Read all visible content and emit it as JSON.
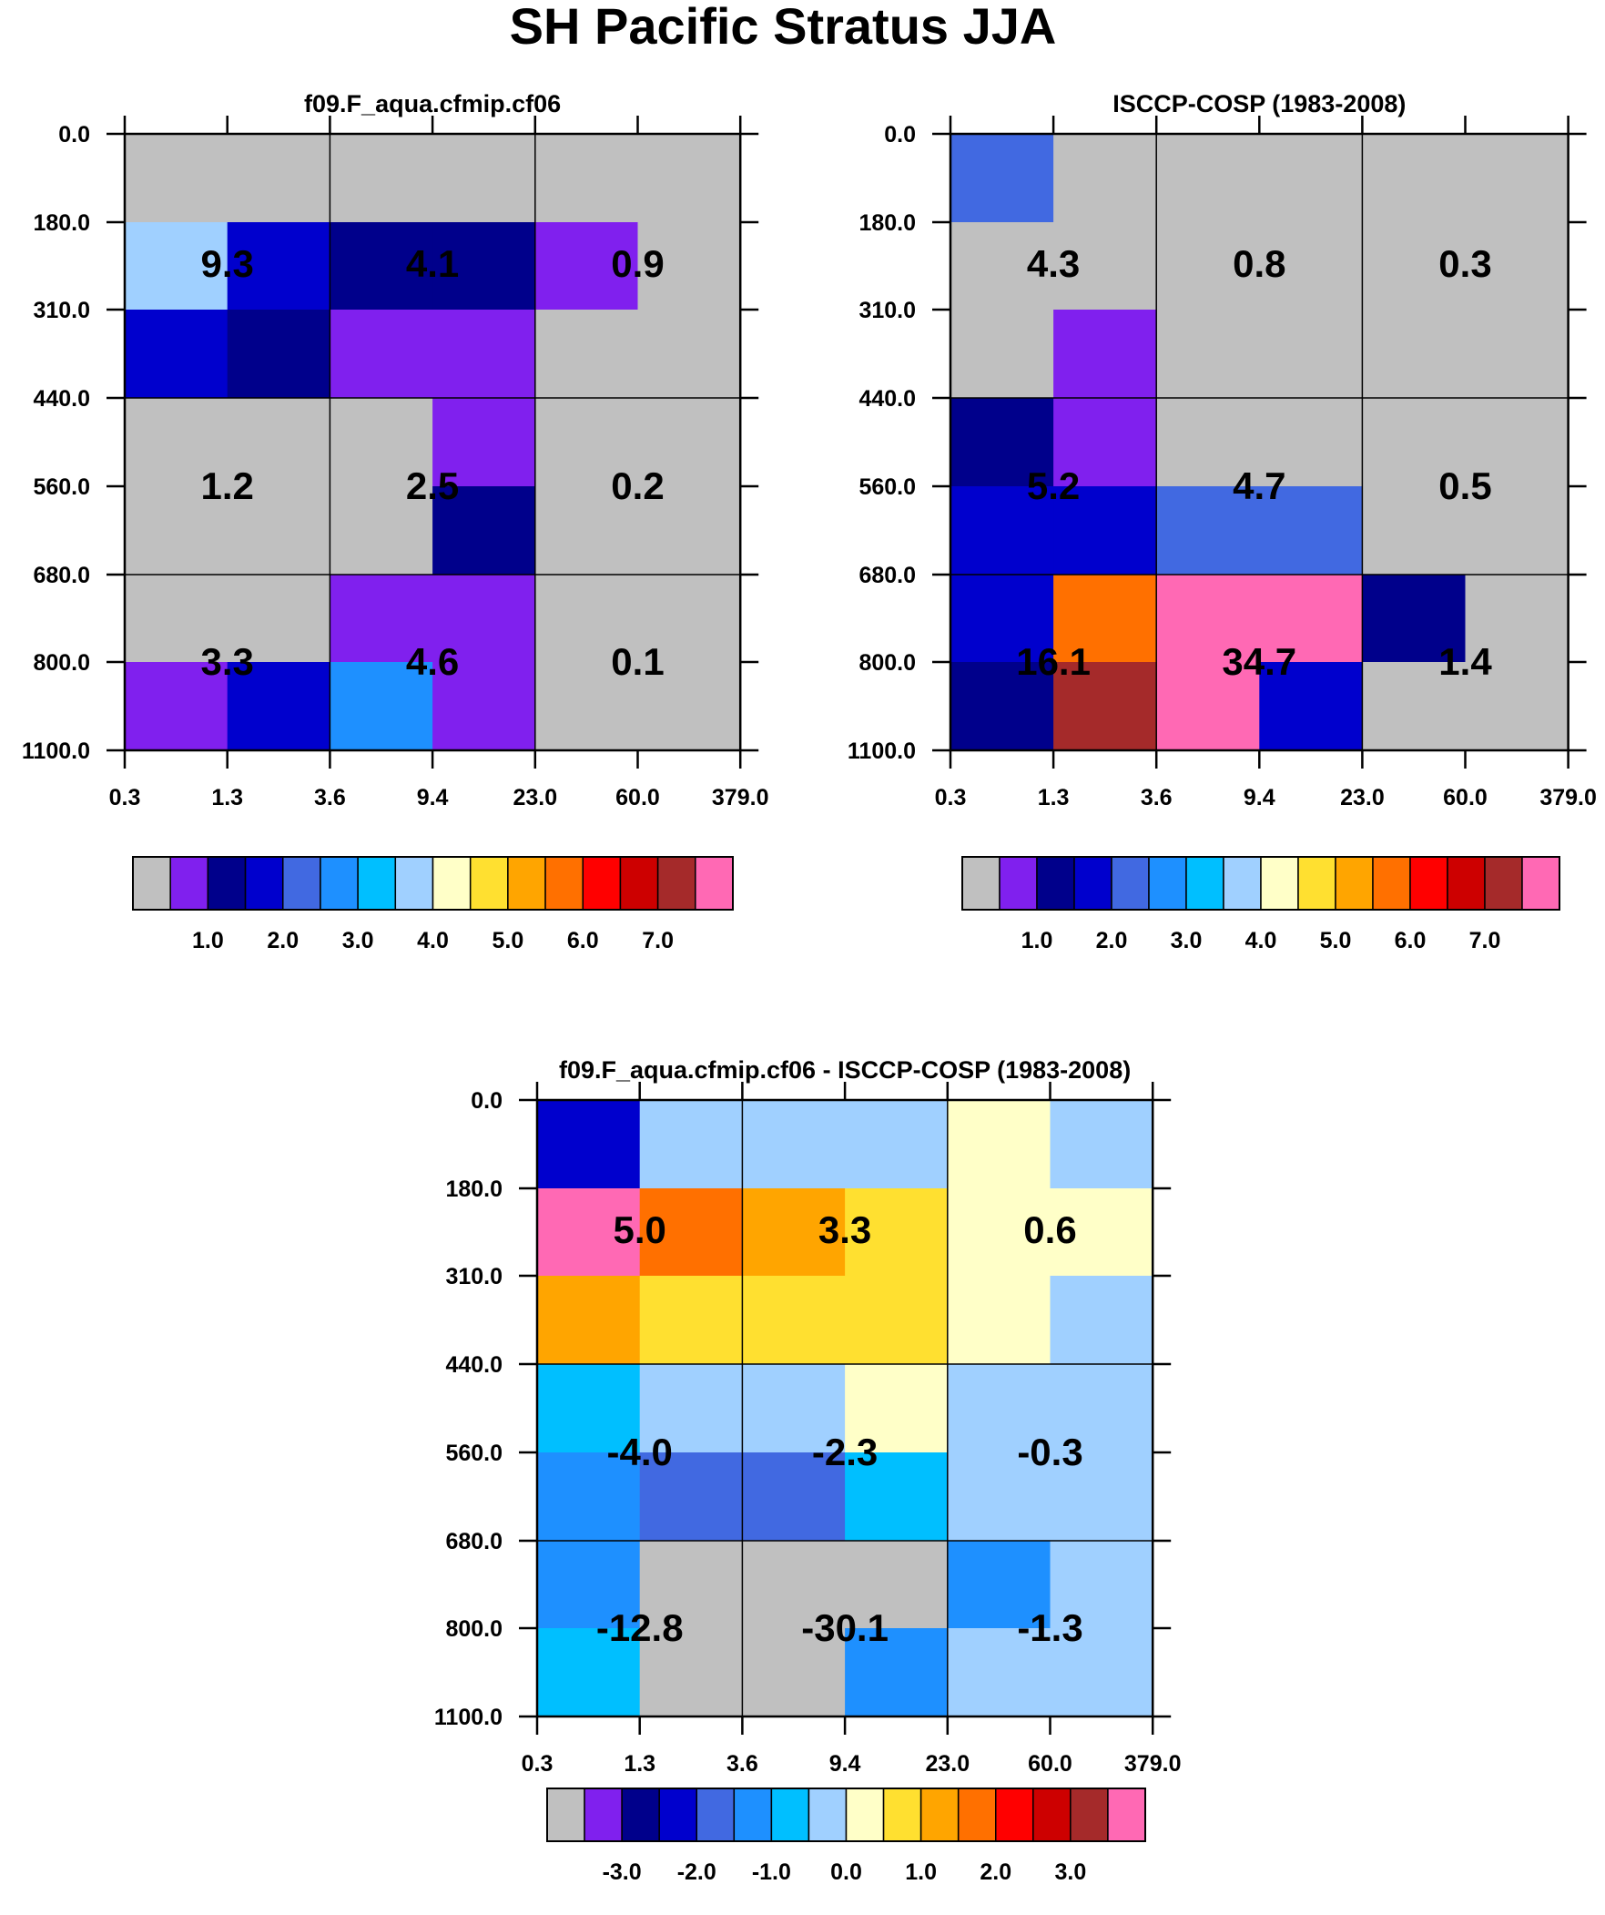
{
  "title": "SH Pacific Stratus JJA",
  "colors": [
    "#C0C0C0",
    "#8020EE",
    "#00008B",
    "#0000CD",
    "#4169E1",
    "#1E90FF",
    "#00BFFF",
    "#A0D0FF",
    "#FFFFC8",
    "#FFE030",
    "#FFA500",
    "#FF7000",
    "#FF0000",
    "#CD0000",
    "#A52A2A",
    "#FF69B4"
  ],
  "chart_data": [
    {
      "type": "heatmap",
      "title": "f09.F_aqua.cfmip.cf06",
      "x_ticks": [
        "0.3",
        "1.3",
        "3.6",
        "9.4",
        "23.0",
        "60.0",
        "379.0"
      ],
      "y_ticks": [
        "0.0",
        "180.0",
        "310.0",
        "440.0",
        "560.0",
        "680.0",
        "800.0",
        "1100.0"
      ],
      "cell_colors": [
        [
          0,
          0,
          0,
          0,
          0,
          0
        ],
        [
          7,
          3,
          2,
          2,
          1,
          0
        ],
        [
          3,
          2,
          1,
          1,
          0,
          0
        ],
        [
          0,
          0,
          0,
          1,
          0,
          0
        ],
        [
          0,
          0,
          0,
          2,
          0,
          0
        ],
        [
          0,
          0,
          1,
          1,
          0,
          0
        ],
        [
          1,
          3,
          5,
          1,
          0,
          0
        ]
      ],
      "values": [
        [
          "9.3",
          "4.1",
          "0.9"
        ],
        [
          "1.2",
          "2.5",
          "0.2"
        ],
        [
          "3.3",
          "4.6",
          "0.1"
        ]
      ],
      "colorbar_labels": [
        "1.0",
        "2.0",
        "3.0",
        "4.0",
        "5.0",
        "6.0",
        "7.0"
      ]
    },
    {
      "type": "heatmap",
      "title": "ISCCP-COSP (1983-2008)",
      "x_ticks": [
        "0.3",
        "1.3",
        "3.6",
        "9.4",
        "23.0",
        "60.0",
        "379.0"
      ],
      "y_ticks": [
        "0.0",
        "180.0",
        "310.0",
        "440.0",
        "560.0",
        "680.0",
        "800.0",
        "1100.0"
      ],
      "cell_colors": [
        [
          4,
          0,
          0,
          0,
          0,
          0
        ],
        [
          0,
          0,
          0,
          0,
          0,
          0
        ],
        [
          0,
          1,
          0,
          0,
          0,
          0
        ],
        [
          2,
          1,
          0,
          0,
          0,
          0
        ],
        [
          3,
          3,
          4,
          4,
          0,
          0
        ],
        [
          3,
          11,
          15,
          15,
          2,
          0
        ],
        [
          2,
          14,
          15,
          3,
          0,
          0
        ]
      ],
      "values": [
        [
          "4.3",
          "0.8",
          "0.3"
        ],
        [
          "5.2",
          "4.7",
          "0.5"
        ],
        [
          "16.1",
          "34.7",
          "1.4"
        ]
      ],
      "colorbar_labels": [
        "1.0",
        "2.0",
        "3.0",
        "4.0",
        "5.0",
        "6.0",
        "7.0"
      ]
    },
    {
      "type": "heatmap",
      "title": "f09.F_aqua.cfmip.cf06 - ISCCP-COSP (1983-2008)",
      "x_ticks": [
        "0.3",
        "1.3",
        "3.6",
        "9.4",
        "23.0",
        "60.0",
        "379.0"
      ],
      "y_ticks": [
        "0.0",
        "180.0",
        "310.0",
        "440.0",
        "560.0",
        "680.0",
        "800.0",
        "1100.0"
      ],
      "cell_colors": [
        [
          3,
          7,
          7,
          7,
          8,
          7
        ],
        [
          15,
          11,
          10,
          9,
          8,
          8
        ],
        [
          10,
          9,
          9,
          9,
          8,
          7
        ],
        [
          6,
          7,
          7,
          8,
          7,
          7
        ],
        [
          5,
          4,
          4,
          6,
          7,
          7
        ],
        [
          5,
          0,
          0,
          0,
          5,
          7
        ],
        [
          6,
          0,
          0,
          5,
          7,
          7
        ]
      ],
      "values": [
        [
          "5.0",
          "3.3",
          "0.6"
        ],
        [
          "-4.0",
          "-2.3",
          "-0.3"
        ],
        [
          "-12.8",
          "-30.1",
          "-1.3"
        ]
      ],
      "colorbar_labels": [
        "-3.0",
        "-2.0",
        "-1.0",
        "0.0",
        "1.0",
        "2.0",
        "3.0"
      ]
    }
  ]
}
